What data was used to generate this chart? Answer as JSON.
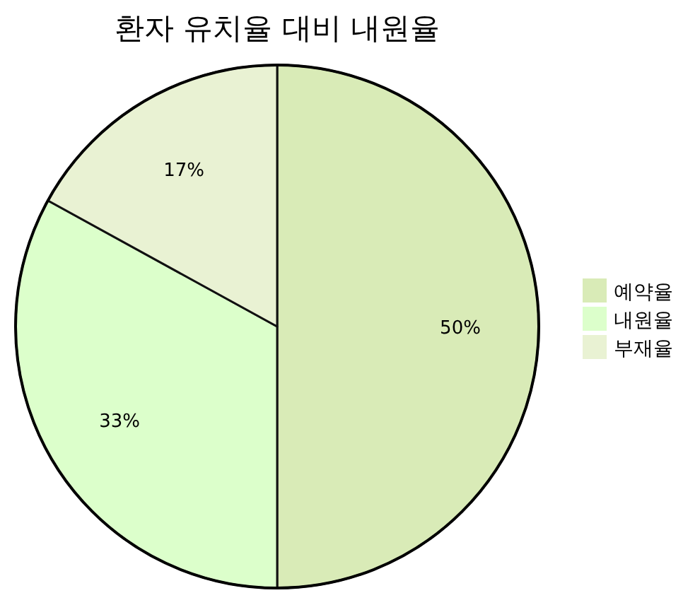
{
  "chart_data": {
    "type": "pie",
    "title": "환자 유치율 대비 내원율",
    "categories": [
      "예약율",
      "내원율",
      "부재율"
    ],
    "values": [
      50,
      33,
      17
    ],
    "value_labels": [
      "50%",
      "33%",
      "17%"
    ],
    "colors": [
      "#d9ebb7",
      "#dcffcb",
      "#e9f2d3"
    ],
    "legend": "right"
  }
}
